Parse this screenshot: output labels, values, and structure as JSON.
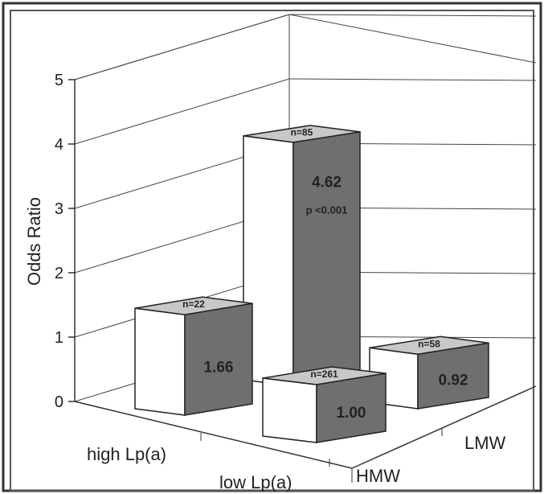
{
  "chart_data": {
    "type": "bar",
    "ylabel": "Odds Ratio",
    "ylim": [
      0,
      5
    ],
    "yticks": [
      "0",
      "1",
      "2",
      "3",
      "4",
      "5"
    ],
    "row_categories": [
      "high Lp(a)",
      "low Lp(a)"
    ],
    "depth_categories": [
      "HMW",
      "LMW"
    ],
    "bars": [
      {
        "row": "high Lp(a)",
        "group": "HMW",
        "value": 1.66,
        "value_label": "1.66",
        "n_label": "n=22",
        "p_label": ""
      },
      {
        "row": "high Lp(a)",
        "group": "LMW",
        "value": 4.62,
        "value_label": "4.62",
        "n_label": "n=85",
        "p_label": "p <0.001"
      },
      {
        "row": "low Lp(a)",
        "group": "HMW",
        "value": 1.0,
        "value_label": "1.00",
        "n_label": "n=261",
        "p_label": ""
      },
      {
        "row": "low Lp(a)",
        "group": "LMW",
        "value": 0.92,
        "value_label": "0.92",
        "n_label": "n=58",
        "p_label": ""
      }
    ],
    "colors": {
      "bar_front": "#ffffff",
      "bar_side": "#6f6f6f",
      "bar_top": "#c8c8c8",
      "grid": "#444444",
      "frame": "#333333"
    }
  }
}
